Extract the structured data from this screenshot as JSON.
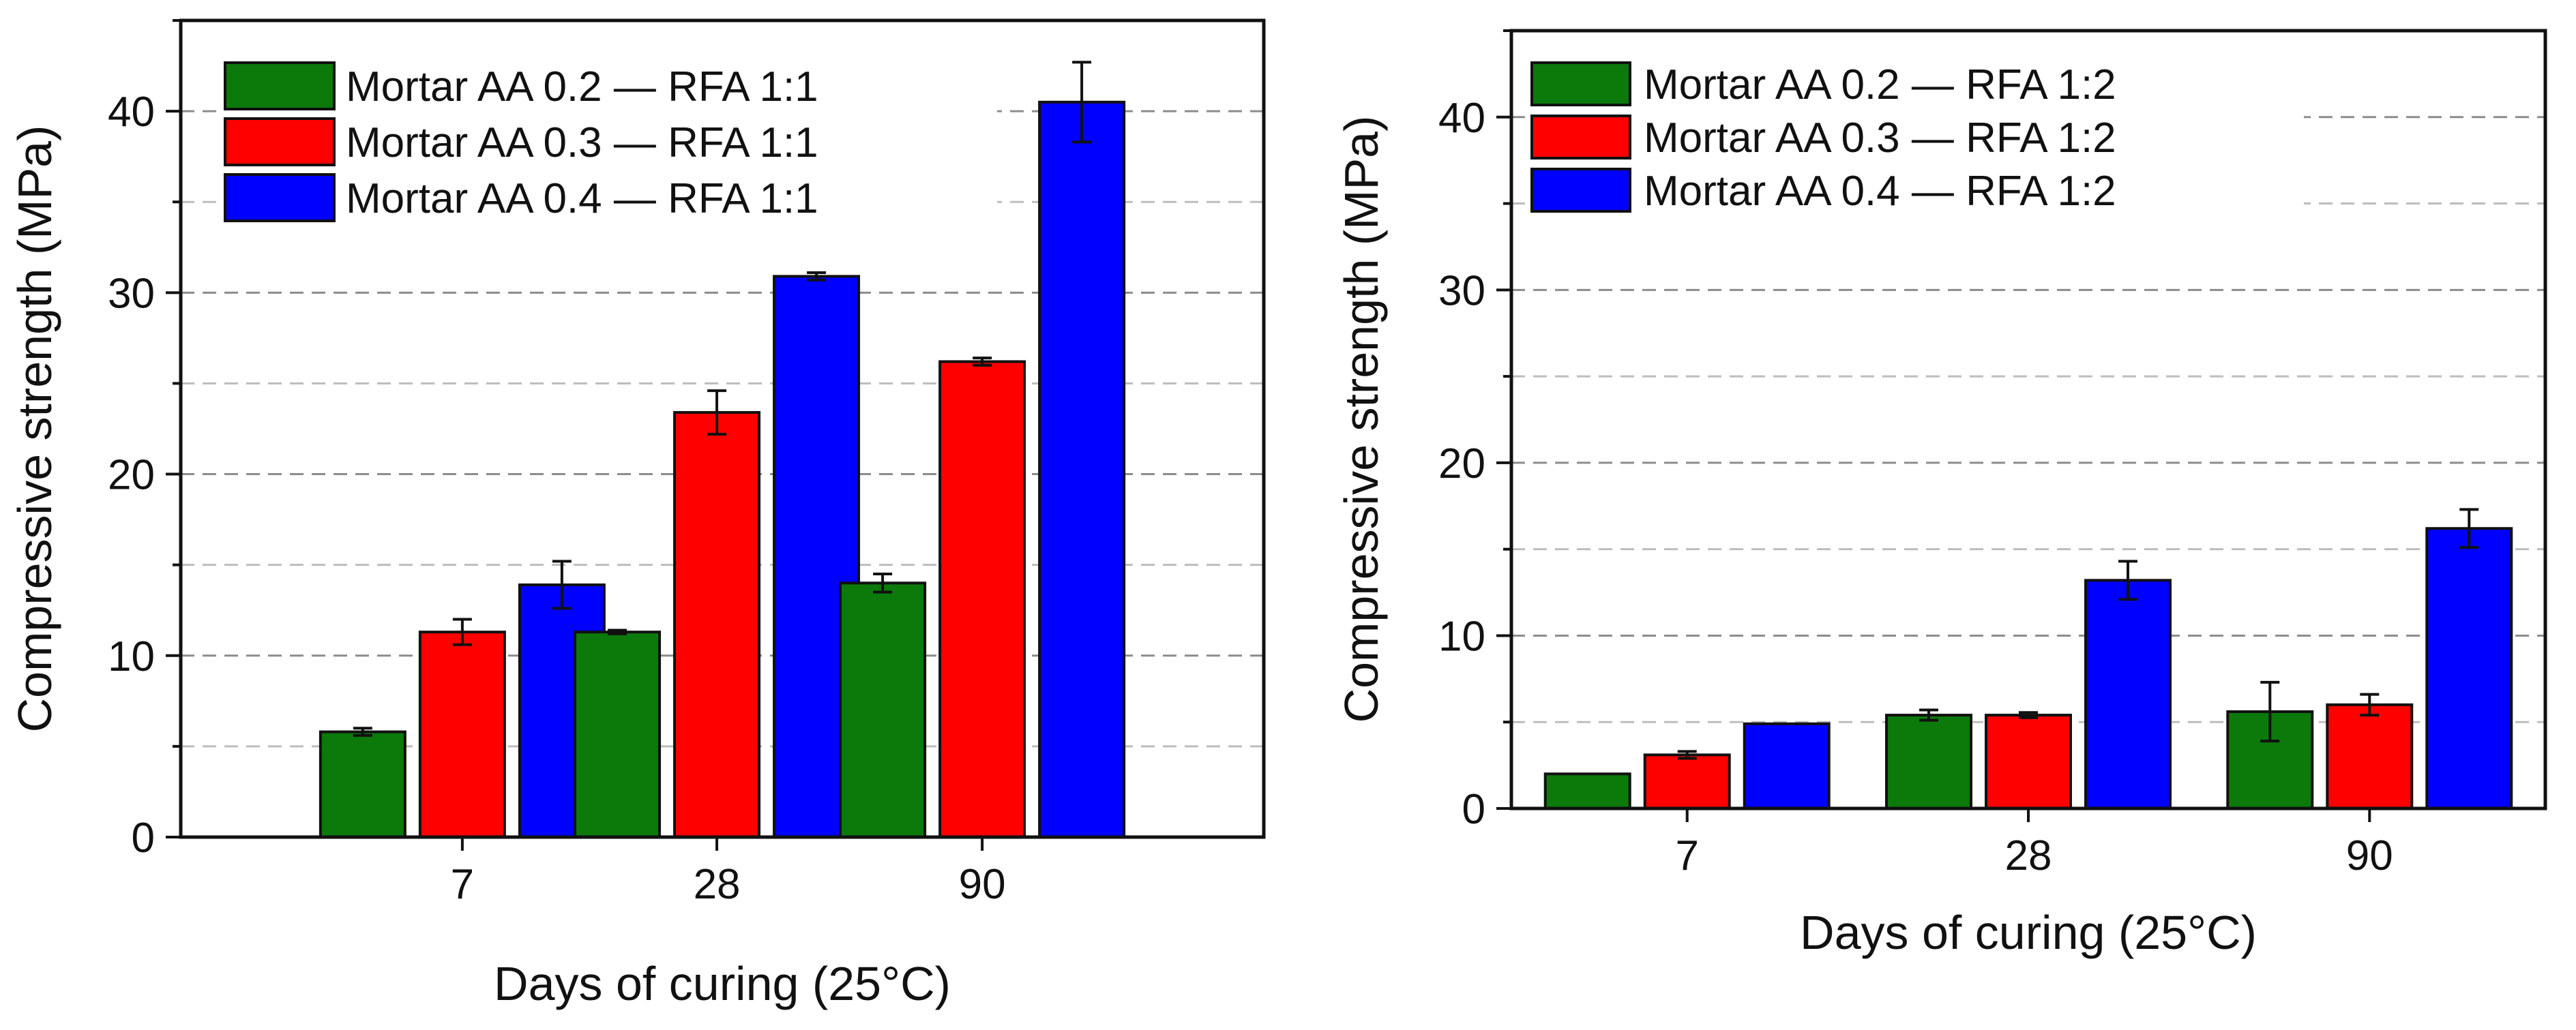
{
  "chart_data": [
    {
      "type": "bar",
      "title": "",
      "xlabel": "Days of curing (25°C)",
      "ylabel": "Compressive strength (MPa)",
      "categories": [
        "7",
        "28",
        "90"
      ],
      "ylim": [
        0,
        45
      ],
      "yticks": [
        0,
        10,
        20,
        30,
        40
      ],
      "grid": true,
      "legend_position": "top-left",
      "series": [
        {
          "name": "Mortar AA 0.2 — RFA 1:1",
          "color": "#0b7a0b",
          "values": [
            5.8,
            11.3,
            14.0
          ],
          "errors": [
            0.2,
            0.1,
            0.5
          ]
        },
        {
          "name": "Mortar AA 0.3 — RFA 1:1",
          "color": "#ff0000",
          "values": [
            11.3,
            23.4,
            26.2
          ],
          "errors": [
            0.7,
            1.2,
            0.2
          ]
        },
        {
          "name": "Mortar AA 0.4 — RFA 1:1",
          "color": "#0000ff",
          "values": [
            13.9,
            30.9,
            40.5
          ],
          "errors": [
            1.3,
            0.2,
            2.2
          ]
        }
      ]
    },
    {
      "type": "bar",
      "title": "",
      "xlabel": "Days of curing (25°C)",
      "ylabel": "Compressive strength (MPa)",
      "categories": [
        "7",
        "28",
        "90"
      ],
      "ylim": [
        0,
        45
      ],
      "yticks": [
        0,
        10,
        20,
        30,
        40
      ],
      "grid": true,
      "legend_position": "top-left",
      "series": [
        {
          "name": "Mortar AA 0.2 — RFA 1:2",
          "color": "#0b7a0b",
          "values": [
            2.0,
            5.4,
            5.6
          ],
          "errors": [
            0.05,
            0.3,
            1.7
          ]
        },
        {
          "name": "Mortar AA 0.3 — RFA 1:2",
          "color": "#ff0000",
          "values": [
            3.1,
            5.4,
            6.0
          ],
          "errors": [
            0.2,
            0.15,
            0.6
          ]
        },
        {
          "name": "Mortar AA 0.4 — RFA 1:2",
          "color": "#0000ff",
          "values": [
            4.9,
            13.2,
            16.2
          ],
          "errors": [
            0.05,
            1.1,
            1.1
          ]
        }
      ]
    }
  ]
}
